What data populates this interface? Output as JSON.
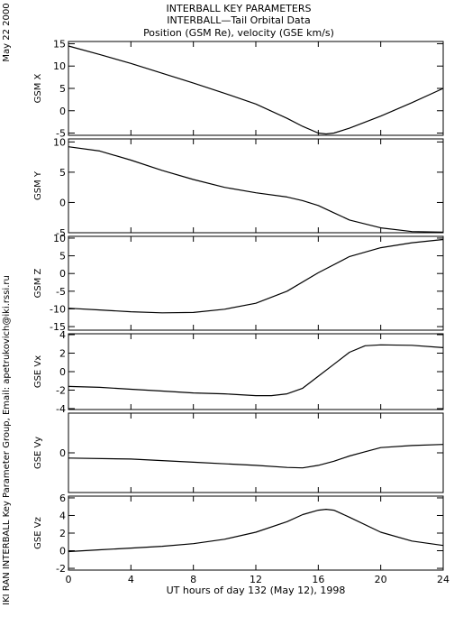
{
  "header": {
    "line1": "INTERBALL KEY PARAMETERS",
    "line2": "INTERBALL—Tail Orbital Data",
    "line3": "Position (GSM Re), velocity (GSE km/s)"
  },
  "side": {
    "date": "May 22 2000",
    "credit": "IKI RAN INTERBALL Key Parameter Group, Email: apetrukovich@iki.rssi.ru"
  },
  "chart_data": {
    "type": "line",
    "x_title": "UT hours of day 132 (May 12), 1998",
    "x_range": [
      0,
      24
    ],
    "x_ticks": [
      0,
      4,
      8,
      12,
      16,
      20,
      24
    ],
    "panels": [
      {
        "ylabel": "GSM X",
        "ylim": [
          -5.5,
          15.5
        ],
        "yticks": [
          -5,
          0,
          5,
          10,
          15
        ],
        "x": [
          0,
          2,
          4,
          6,
          8,
          10,
          12,
          14,
          15,
          16,
          16.5,
          17,
          18,
          20,
          22,
          24
        ],
        "y": [
          14.5,
          12.6,
          10.6,
          8.4,
          6.2,
          3.9,
          1.5,
          -1.7,
          -3.5,
          -5.0,
          -5.2,
          -5.0,
          -3.9,
          -1.2,
          1.8,
          5.0
        ]
      },
      {
        "ylabel": "GSM Y",
        "ylim": [
          -5,
          10.5
        ],
        "yticks": [
          -5,
          0,
          5,
          10
        ],
        "x": [
          0,
          2,
          4,
          6,
          8,
          10,
          12,
          14,
          15,
          16,
          17,
          18,
          20,
          22,
          24
        ],
        "y": [
          9.2,
          8.5,
          7.0,
          5.3,
          3.8,
          2.5,
          1.6,
          0.9,
          0.3,
          -0.5,
          -1.7,
          -2.9,
          -4.2,
          -4.8,
          -4.9
        ]
      },
      {
        "ylabel": "GSM Z",
        "ylim": [
          -16,
          10.5
        ],
        "yticks": [
          -15,
          -10,
          -5,
          0,
          5,
          10
        ],
        "x": [
          0,
          2,
          4,
          6,
          8,
          10,
          12,
          14,
          16,
          18,
          20,
          22,
          24
        ],
        "y": [
          -9.8,
          -10.3,
          -10.8,
          -11.1,
          -11.0,
          -10.1,
          -8.4,
          -5.0,
          0.2,
          4.8,
          7.3,
          8.7,
          9.6
        ]
      },
      {
        "ylabel": "GSE Vx",
        "ylim": [
          -4.1,
          4.1
        ],
        "yticks": [
          -4,
          -2,
          0,
          2,
          4
        ],
        "x": [
          0,
          2,
          4,
          6,
          8,
          10,
          12,
          13,
          14,
          15,
          16,
          17,
          18,
          19,
          20,
          22,
          24
        ],
        "y": [
          -1.6,
          -1.7,
          -1.9,
          -2.1,
          -2.3,
          -2.4,
          -2.6,
          -2.6,
          -2.4,
          -1.8,
          -0.5,
          0.8,
          2.1,
          2.8,
          2.9,
          2.85,
          2.6
        ]
      },
      {
        "ylabel": "GSE Vy",
        "ylim": [
          -1.9,
          1.9
        ],
        "yticks": [
          0
        ],
        "x": [
          0,
          4,
          8,
          12,
          14,
          15,
          16,
          17,
          18,
          19,
          20,
          22,
          24
        ],
        "y": [
          -0.25,
          -0.3,
          -0.45,
          -0.6,
          -0.7,
          -0.72,
          -0.6,
          -0.4,
          -0.15,
          0.05,
          0.25,
          0.35,
          0.4
        ]
      },
      {
        "ylabel": "GSE Vz",
        "ylim": [
          -2.2,
          6.2
        ],
        "yticks": [
          -2,
          0,
          2,
          4,
          6
        ],
        "x": [
          0,
          2,
          4,
          6,
          8,
          10,
          12,
          14,
          15,
          16,
          16.5,
          17,
          18,
          20,
          22,
          24
        ],
        "y": [
          -0.1,
          0.1,
          0.3,
          0.5,
          0.8,
          1.3,
          2.1,
          3.3,
          4.1,
          4.6,
          4.7,
          4.6,
          3.8,
          2.1,
          1.1,
          0.6
        ]
      }
    ]
  }
}
